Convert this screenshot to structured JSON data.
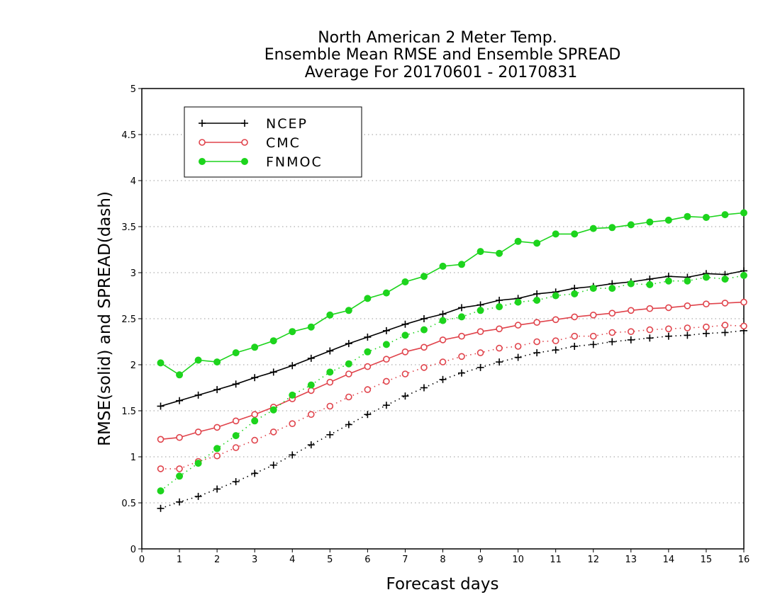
{
  "chart_data": {
    "type": "line",
    "title": [
      "North American 2 Meter Temp.",
      "Ensemble Mean RMSE and Ensemble SPREAD",
      "Average For 20170601 - 20170831"
    ],
    "xlabel": "Forecast days",
    "ylabel": "RMSE(solid) and SPREAD(dash)",
    "xlim": [
      0,
      16
    ],
    "ylim": [
      0,
      5
    ],
    "xticks": [
      0,
      1,
      2,
      3,
      4,
      5,
      6,
      7,
      8,
      9,
      10,
      11,
      12,
      13,
      14,
      15,
      16
    ],
    "xtick_labels": [
      "0",
      "1",
      "2",
      "3",
      "4",
      "5",
      "6",
      "7",
      "8",
      "9",
      "10",
      "11",
      "12",
      "13",
      "14",
      "15",
      "16"
    ],
    "yticks": [
      0,
      0.5,
      1,
      1.5,
      2,
      2.5,
      3,
      3.5,
      4,
      4.5,
      5
    ],
    "ytick_labels": [
      "0",
      "0.5",
      "1",
      "1.5",
      "2",
      "2.5",
      "3",
      "3.5",
      "4",
      "4.5",
      "5"
    ],
    "grid": "horizontal dotted",
    "legend_position": "top-left",
    "x": [
      0.5,
      1,
      1.5,
      2,
      2.5,
      3,
      3.5,
      4,
      4.5,
      5,
      5.5,
      6,
      6.5,
      7,
      7.5,
      8,
      8.5,
      9,
      9.5,
      10,
      10.5,
      11,
      11.5,
      12,
      12.5,
      13,
      13.5,
      14,
      14.5,
      15,
      15.5,
      16
    ],
    "series": [
      {
        "name": "NCEP",
        "color": "#000000",
        "marker": "plus",
        "rmse": [
          1.55,
          1.61,
          1.67,
          1.73,
          1.79,
          1.86,
          1.92,
          1.99,
          2.07,
          2.15,
          2.23,
          2.3,
          2.37,
          2.44,
          2.5,
          2.55,
          2.62,
          2.65,
          2.7,
          2.72,
          2.77,
          2.79,
          2.83,
          2.85,
          2.88,
          2.9,
          2.93,
          2.96,
          2.95,
          2.99,
          2.98,
          3.02
        ],
        "spread": [
          0.44,
          0.51,
          0.57,
          0.65,
          0.73,
          0.82,
          0.91,
          1.02,
          1.13,
          1.24,
          1.35,
          1.46,
          1.56,
          1.66,
          1.75,
          1.84,
          1.91,
          1.97,
          2.03,
          2.08,
          2.13,
          2.16,
          2.2,
          2.22,
          2.25,
          2.27,
          2.29,
          2.31,
          2.32,
          2.34,
          2.35,
          2.37
        ]
      },
      {
        "name": "CMC",
        "color": "#e0434b",
        "marker": "open-circle",
        "rmse": [
          1.19,
          1.21,
          1.27,
          1.32,
          1.39,
          1.46,
          1.54,
          1.63,
          1.72,
          1.81,
          1.9,
          1.98,
          2.06,
          2.14,
          2.19,
          2.27,
          2.31,
          2.36,
          2.39,
          2.43,
          2.46,
          2.49,
          2.52,
          2.54,
          2.56,
          2.59,
          2.61,
          2.62,
          2.64,
          2.66,
          2.67,
          2.68
        ],
        "spread": [
          0.87,
          0.87,
          0.95,
          1.01,
          1.1,
          1.18,
          1.27,
          1.36,
          1.46,
          1.55,
          1.65,
          1.73,
          1.82,
          1.9,
          1.97,
          2.03,
          2.09,
          2.13,
          2.18,
          2.2,
          2.25,
          2.26,
          2.31,
          2.31,
          2.35,
          2.36,
          2.38,
          2.39,
          2.4,
          2.41,
          2.43,
          2.42
        ]
      },
      {
        "name": "FNMOC",
        "color": "#1dd41d",
        "marker": "filled-circle",
        "rmse": [
          2.02,
          1.89,
          2.05,
          2.03,
          2.13,
          2.19,
          2.26,
          2.36,
          2.41,
          2.54,
          2.59,
          2.72,
          2.78,
          2.9,
          2.96,
          3.07,
          3.09,
          3.23,
          3.21,
          3.34,
          3.32,
          3.42,
          3.42,
          3.48,
          3.49,
          3.52,
          3.55,
          3.57,
          3.61,
          3.6,
          3.63,
          3.65
        ],
        "spread": [
          0.63,
          0.79,
          0.93,
          1.09,
          1.23,
          1.39,
          1.51,
          1.67,
          1.78,
          1.92,
          2.01,
          2.14,
          2.22,
          2.32,
          2.38,
          2.48,
          2.52,
          2.59,
          2.63,
          2.68,
          2.7,
          2.75,
          2.77,
          2.83,
          2.83,
          2.88,
          2.87,
          2.91,
          2.91,
          2.95,
          2.93,
          2.97
        ]
      }
    ]
  }
}
